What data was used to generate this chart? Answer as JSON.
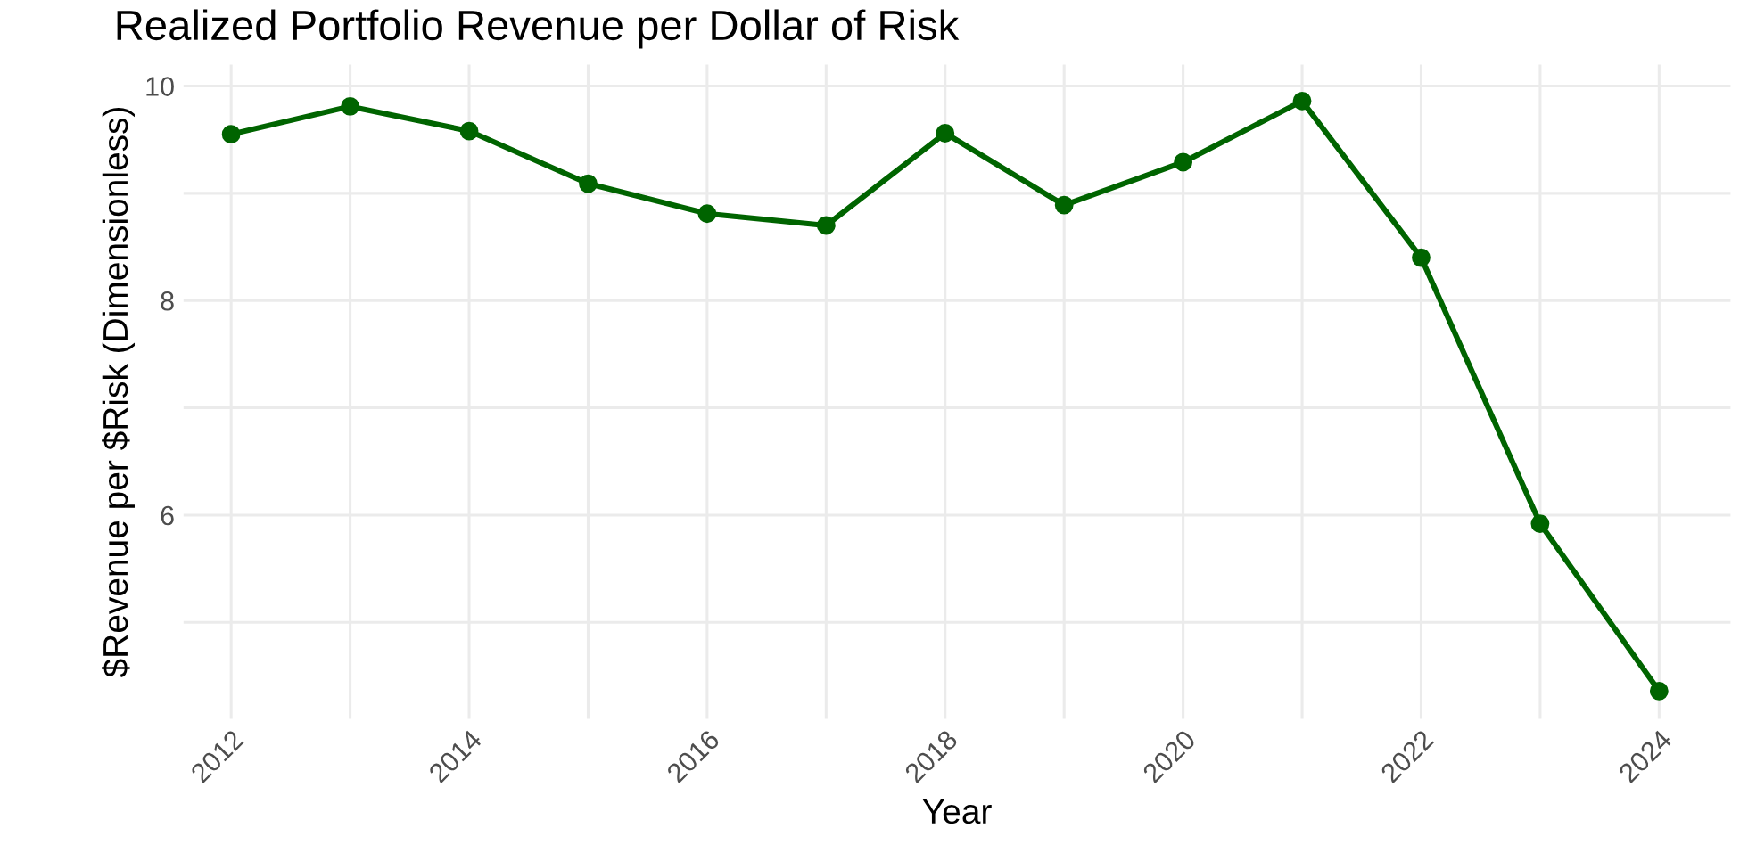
{
  "chart_data": {
    "type": "line",
    "title": "Realized Portfolio Revenue per Dollar of Risk",
    "xlabel": "Year",
    "ylabel": "$Revenue per $Risk (Dimensionless)",
    "x": [
      2012,
      2013,
      2014,
      2015,
      2016,
      2017,
      2018,
      2019,
      2020,
      2021,
      2022,
      2023,
      2024
    ],
    "series": [
      {
        "color": "#006400",
        "values": [
          9.55,
          9.81,
          9.58,
          9.09,
          8.81,
          8.7,
          9.56,
          8.89,
          9.29,
          9.86,
          8.4,
          5.92,
          4.36
        ]
      }
    ],
    "xlim": [
      2011.6,
      2024.6
    ],
    "ylim": [
      4.1,
      10.2
    ],
    "xticks": [
      2012,
      {
        "value": 2013,
        "label": null
      },
      2014,
      {
        "value": 2015,
        "label": null
      },
      2016,
      {
        "value": 2017,
        "label": null
      },
      2018,
      {
        "value": 2019,
        "label": null
      },
      2020,
      {
        "value": 2021,
        "label": null
      },
      2022,
      {
        "value": 2023,
        "label": null
      },
      2024
    ],
    "yticks": [
      {
        "value": 5,
        "label": null
      },
      6,
      {
        "value": 7,
        "label": null
      },
      8,
      {
        "value": 9,
        "label": null
      },
      10
    ],
    "grid": true,
    "marker": "circle",
    "line_style": "solid"
  }
}
